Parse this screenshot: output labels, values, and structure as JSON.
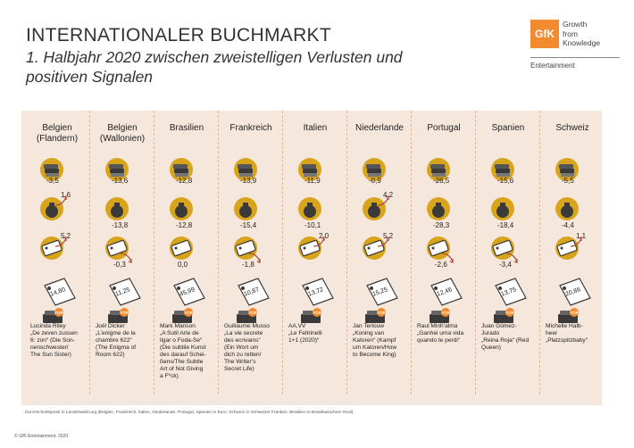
{
  "title": "INTERNATIONALER BUCHMARKT",
  "subtitle": "1. Halbjahr 2020 zwischen zweistelligen Verlusten und positiven Signalen",
  "logo": {
    "mark": "GfK",
    "line1": "Growth",
    "line2": "from",
    "line3": "Knowledge",
    "sub": "Entertainment"
  },
  "colors": {
    "panel": "#f6e7dc",
    "gold": "#d8a41c",
    "dark": "#3a3a3a",
    "accent": "#f28b30",
    "arrow": "#b0473d"
  },
  "countries": [
    {
      "name": "Belgien\n(Flandern)",
      "units": "-3,5",
      "sales": "1,6",
      "price": "5,2",
      "avg": "14,80",
      "book": "Lucinda Riley\n„De zeven zussen\n6: zon“ (Die Son-\nnenschwester/\nThe Sun Sister)",
      "sales_pos": true,
      "price_pos": true
    },
    {
      "name": "Belgien\n(Wallonien)",
      "units": "-13,6",
      "sales": "-13,8",
      "price": "-0,3",
      "avg": "11,25",
      "book": "Joël Dicker\n„L’enigme de la\nchambre 622“\n(The Enigma of\nRoom 622)",
      "sales_pos": false,
      "price_pos": false
    },
    {
      "name": "Brasilien",
      "units": "-12,8",
      "sales": "-12,8",
      "price": "0,0",
      "avg": "45,99",
      "book": "Mark Manson\n„A Sutil Arte de\nligar o Foda-Se“\n(Die subtile Kunst\ndes darauf Schei-\nßens/The Subtle\nArt of Not Giving\na F*ck)",
      "sales_pos": false,
      "price_pos": null
    },
    {
      "name": "Frankreich",
      "units": "-13,9",
      "sales": "-15,4",
      "price": "-1,8",
      "avg": "10,87",
      "book": "Guillaume Musso\n„La vie secrete\ndes ecrivains“\n(Ein Wort um\ndich zu retten/\nThe Writer’s\nSecret Life)",
      "sales_pos": false,
      "price_pos": false
    },
    {
      "name": "Italien",
      "units": "-11,9",
      "sales": "-10,1",
      "price": "2,0",
      "avg": "13,72",
      "book": "AA.VV\n„Le Feltrinelli\n1+1 (2020)“",
      "sales_pos": false,
      "price_pos": true
    },
    {
      "name": "Niederlande",
      "units": "-0,9",
      "sales": "4,2",
      "price": "5,2",
      "avg": "15,25",
      "book": "Jan Terlouw\n„Koning van\nKatoren“ (Kampf\num Katoren/How\nto Become King)",
      "sales_pos": true,
      "price_pos": true
    },
    {
      "name": "Portugal",
      "units": "-26,5",
      "sales": "-28,3",
      "price": "-2,6",
      "avg": "12,46",
      "book": "Raul Minh’alma\n„Ganhei uma vida\nquando te perdi“",
      "sales_pos": false,
      "price_pos": false
    },
    {
      "name": "Spanien",
      "units": "-15,6",
      "sales": "-18,4",
      "price": "-3,4",
      "avg": "13,75",
      "book": "Juan Gómez-\nJurado\n„Reina Roja“ (Red\nQueen)",
      "sales_pos": false,
      "price_pos": false
    },
    {
      "name": "Schweiz",
      "units": "-5,5",
      "sales": "-4,4",
      "price": "1,1",
      "avg": "20,86",
      "book": "Michelle Halb-\nheer\n„Platzspitzbaby“",
      "sales_pos": false,
      "price_pos": true
    }
  ],
  "top_badge": "TOP",
  "footnote": "Durchschnittspreis in Landeswährung (Belgien, Frankreich, Italien, Niederlande, Portugal, Spanien in Euro; Schweiz in Schweizer Franken; Brasilien in Brasilianischem Real).",
  "copyright": "© GfK Entertainment, 2020"
}
